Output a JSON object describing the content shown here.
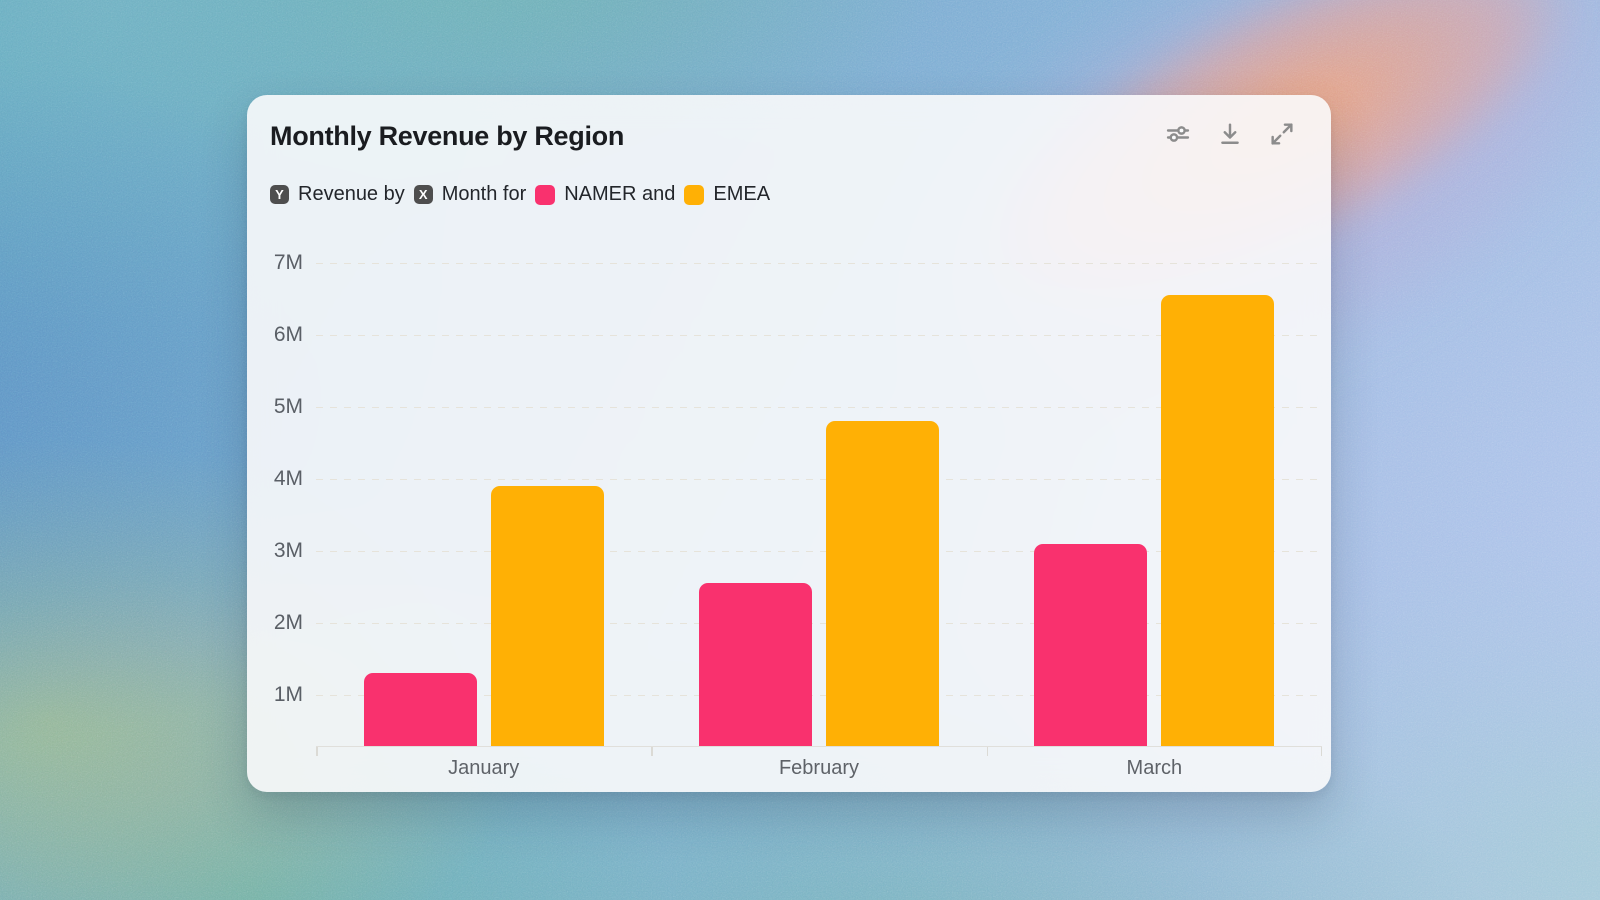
{
  "card": {
    "title": "Monthly Revenue by Region",
    "subtitle": {
      "y_badge": "Y",
      "y_label": "Revenue by",
      "x_badge": "X",
      "x_label": "Month for",
      "connector": "and"
    },
    "toolbar": {
      "adjust_icon": "sliders-icon",
      "download_icon": "download-icon",
      "expand_icon": "expand-icon"
    }
  },
  "chart_data": {
    "type": "bar",
    "title": "Monthly Revenue by Region",
    "categories": [
      "January",
      "February",
      "March"
    ],
    "series": [
      {
        "name": "NAMER",
        "color": "#F9316E",
        "values_millions": [
          1.3,
          2.55,
          3.1
        ]
      },
      {
        "name": "EMEA",
        "color": "#FFB005",
        "values_millions": [
          3.9,
          4.8,
          6.55
        ]
      }
    ],
    "xlabel": "Month",
    "ylabel": "Revenue",
    "y_ticks": [
      {
        "label": "1M",
        "value": 1
      },
      {
        "label": "2M",
        "value": 2
      },
      {
        "label": "3M",
        "value": 3
      },
      {
        "label": "4M",
        "value": 4
      },
      {
        "label": "5M",
        "value": 5
      },
      {
        "label": "6M",
        "value": 6
      },
      {
        "label": "7M",
        "value": 7
      }
    ],
    "ylim_millions": [
      0,
      7
    ],
    "grid": "horizontal-dashed",
    "legend_position": "subtitle-inline"
  }
}
